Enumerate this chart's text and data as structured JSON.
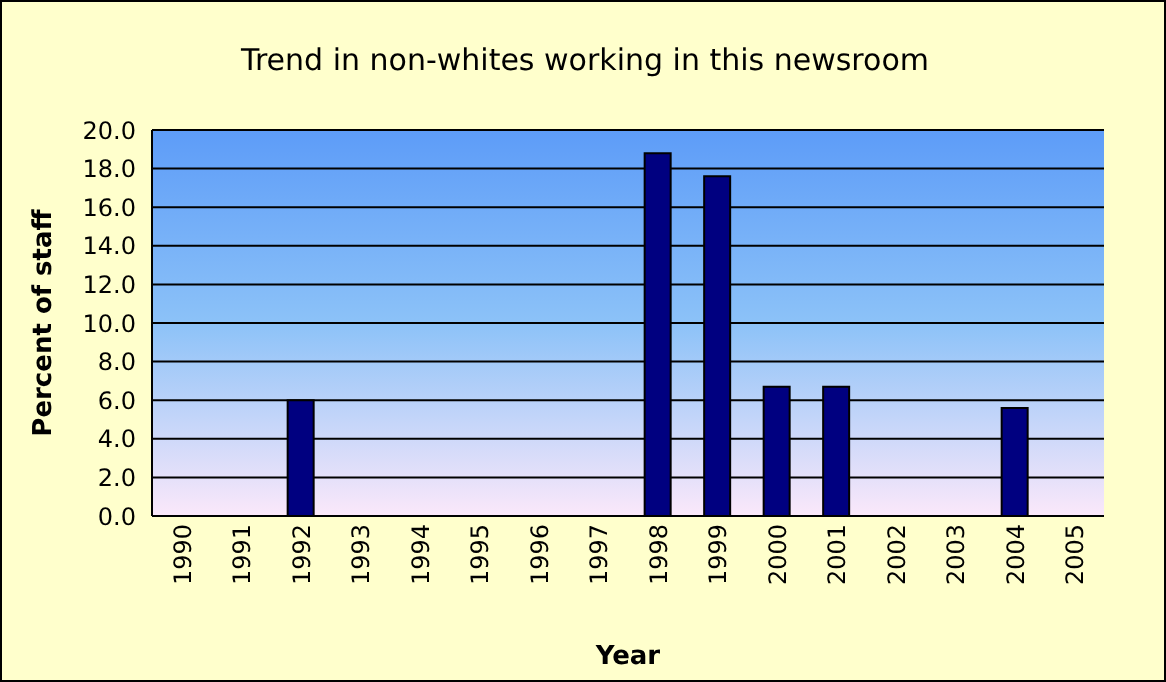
{
  "chart_data": {
    "type": "bar",
    "title": "Trend in non-whites working in this newsroom",
    "xlabel": "Year",
    "ylabel": "Percent of staff",
    "categories": [
      "1990",
      "1991",
      "1992",
      "1993",
      "1994",
      "1995",
      "1996",
      "1997",
      "1998",
      "1999",
      "2000",
      "2001",
      "2002",
      "2003",
      "2004",
      "2005"
    ],
    "values": [
      null,
      null,
      6.0,
      null,
      null,
      null,
      null,
      null,
      18.8,
      17.6,
      6.7,
      6.7,
      null,
      null,
      5.6,
      null
    ],
    "color": "#000080",
    "ylim": [
      0,
      20
    ],
    "yticks": [
      {
        "value": 0,
        "label": "0.0"
      },
      {
        "value": 2,
        "label": "2.0"
      },
      {
        "value": 4,
        "label": "4.0"
      },
      {
        "value": 6,
        "label": "6.0"
      },
      {
        "value": 8,
        "label": "8.0"
      },
      {
        "value": 10,
        "label": "10.0"
      },
      {
        "value": 12,
        "label": "12.0"
      },
      {
        "value": 14,
        "label": "14.0"
      },
      {
        "value": 16,
        "label": "16.0"
      },
      {
        "value": 18,
        "label": "18.0"
      },
      {
        "value": 20,
        "label": "20.0"
      }
    ],
    "grid": "y",
    "legend": false
  }
}
